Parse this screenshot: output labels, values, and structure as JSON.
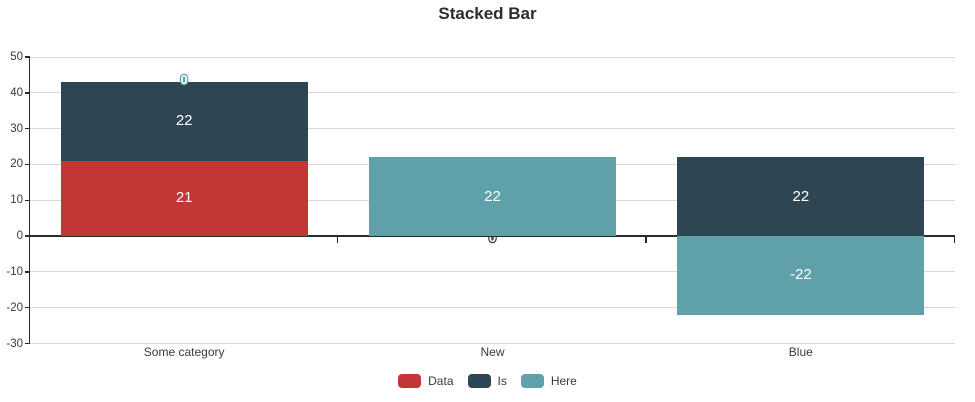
{
  "chart_data": {
    "type": "bar",
    "stacked": true,
    "title": "Stacked Bar",
    "categories": [
      "Some category",
      "New",
      "Blue"
    ],
    "series": [
      {
        "name": "Data",
        "color": "#c33636",
        "values": [
          21,
          0,
          0
        ]
      },
      {
        "name": "Is",
        "color": "#2e4654",
        "values": [
          22,
          0,
          22
        ]
      },
      {
        "name": "Here",
        "color": "#60a0a8",
        "values": [
          0,
          22,
          -22
        ]
      }
    ],
    "ylim": [
      -30,
      50
    ],
    "ytick_step": 10,
    "ytick_labels": [
      "50",
      "40",
      "30",
      "20",
      "10",
      "0",
      "-10",
      "-20",
      "-30"
    ],
    "grid": true,
    "legend_position": "bottom",
    "visible_bar_labels": [
      {
        "category": "Some category",
        "series": "Data",
        "text": "21"
      },
      {
        "category": "Some category",
        "series": "Is",
        "text": "22"
      },
      {
        "category": "New",
        "series": "Here",
        "text": "22"
      },
      {
        "category": "Blue",
        "series": "Is",
        "text": "22"
      },
      {
        "category": "Blue",
        "series": "Here",
        "text": "-22"
      }
    ],
    "zero_point_labels": [
      {
        "category": "Some category",
        "series": "Here",
        "text": "0",
        "placement": "above-stack"
      },
      {
        "category": "New",
        "series": "Is",
        "text": "0",
        "placement": "baseline"
      }
    ],
    "colors": {
      "background": "#ffffff",
      "grid": "#d9d9d9",
      "axis": "#2b2b2b",
      "text": "#3a3a3a",
      "bar_label": "#ffffff",
      "title": "#2d2d2d"
    }
  },
  "legend": {
    "items": [
      {
        "label": "Data",
        "color": "#c33636"
      },
      {
        "label": "Is",
        "color": "#2e4654"
      },
      {
        "label": "Here",
        "color": "#60a0a8"
      }
    ]
  }
}
